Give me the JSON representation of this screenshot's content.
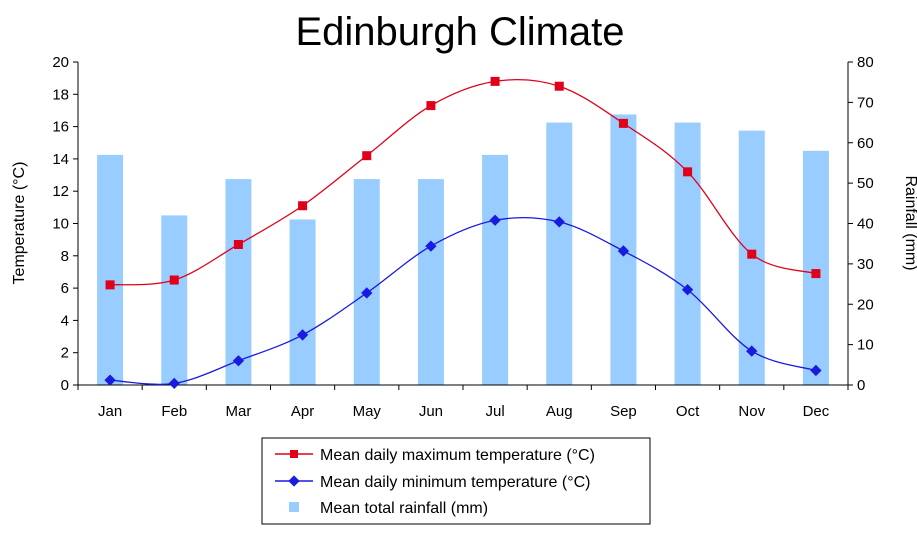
{
  "chart_data": {
    "type": "bar+line",
    "title": "Edinburgh Climate",
    "categories": [
      "Jan",
      "Feb",
      "Mar",
      "Apr",
      "May",
      "Jun",
      "Jul",
      "Aug",
      "Sep",
      "Oct",
      "Nov",
      "Dec"
    ],
    "ylabel": "Temperature (°C)",
    "y2label": "Rainfall (mm)",
    "ylim": [
      0,
      20
    ],
    "y2lim": [
      0,
      80
    ],
    "yticks": [
      "0",
      "2",
      "4",
      "6",
      "8",
      "10",
      "12",
      "14",
      "16",
      "18",
      "20"
    ],
    "y2ticks": [
      "0",
      "10",
      "20",
      "30",
      "40",
      "50",
      "60",
      "70",
      "80"
    ],
    "legend_position": "bottom",
    "series": [
      {
        "name": "Mean daily maximum temperature (°C)",
        "type": "line",
        "axis": "left",
        "color": "#e0001a",
        "values": [
          6.2,
          6.5,
          8.7,
          11.1,
          14.2,
          17.3,
          18.8,
          18.5,
          16.2,
          13.2,
          8.1,
          6.9
        ]
      },
      {
        "name": "Mean daily minimum temperature (°C)",
        "type": "line",
        "axis": "left",
        "color": "#1a1ae0",
        "values": [
          0.3,
          0.1,
          1.5,
          3.1,
          5.7,
          8.6,
          10.2,
          10.1,
          8.3,
          5.9,
          2.1,
          0.9
        ]
      },
      {
        "name": "Mean total rainfall (mm)",
        "type": "bar",
        "axis": "right",
        "color": "#99ccff",
        "values": [
          57,
          42,
          51,
          41,
          51,
          51,
          57,
          65,
          67,
          65,
          63,
          58
        ]
      }
    ]
  }
}
